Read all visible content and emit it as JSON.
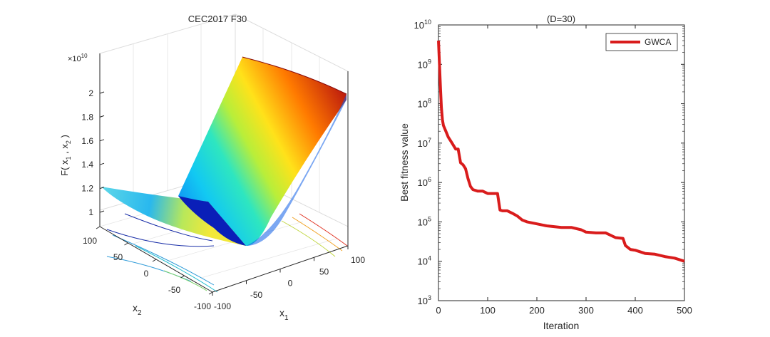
{
  "chart_data": [
    {
      "type": "surface3d",
      "title": "CEC2017 F30",
      "zlabel_main": "F( x",
      "zlabel_sub1": "1",
      "zlabel_mid": " , x",
      "zlabel_sub2": "2",
      "zlabel_end": " )",
      "xlabel_main": "x",
      "xlabel_sub": "1",
      "ylabel_main": "x",
      "ylabel_sub": "2",
      "zscale_main": "×10",
      "zscale_exp": "10",
      "zlim": [
        0.9,
        2.1
      ],
      "zticks": [
        "1",
        "1.2",
        "1.4",
        "1.6",
        "1.8",
        "2"
      ],
      "x1ticks": [
        "-100",
        "-50",
        "0",
        "50",
        "100"
      ],
      "x2ticks": [
        "-100",
        "-50",
        "0",
        "50",
        "100"
      ],
      "colormap": "jet"
    },
    {
      "type": "line",
      "title": "(D=30)",
      "xlabel": "Iteration",
      "ylabel": "Best fitness value",
      "yscale": "log",
      "xlim": [
        0,
        500
      ],
      "ylim_exp": [
        3,
        10
      ],
      "xticks": [
        "0",
        "100",
        "200",
        "300",
        "400",
        "500"
      ],
      "ytick_base": "10",
      "ytick_exps": [
        "3",
        "4",
        "5",
        "6",
        "7",
        "8",
        "9",
        "10"
      ],
      "legend_position": "top-right",
      "series": [
        {
          "name": "GWCA",
          "color": "#d91c1c",
          "x": [
            0,
            2,
            4,
            6,
            8,
            10,
            15,
            20,
            25,
            30,
            35,
            40,
            45,
            50,
            55,
            60,
            65,
            70,
            80,
            90,
            100,
            110,
            120,
            125,
            130,
            140,
            150,
            160,
            170,
            180,
            200,
            220,
            250,
            270,
            290,
            300,
            320,
            340,
            360,
            375,
            380,
            390,
            400,
            420,
            440,
            460,
            480,
            500
          ],
          "log10y": [
            9.6,
            9.0,
            8.4,
            7.9,
            7.6,
            7.45,
            7.3,
            7.15,
            7.05,
            6.95,
            6.85,
            6.85,
            6.5,
            6.45,
            6.35,
            6.1,
            5.9,
            5.82,
            5.78,
            5.78,
            5.72,
            5.72,
            5.72,
            5.3,
            5.28,
            5.28,
            5.22,
            5.15,
            5.05,
            5.0,
            4.95,
            4.9,
            4.86,
            4.86,
            4.8,
            4.74,
            4.72,
            4.72,
            4.6,
            4.58,
            4.4,
            4.3,
            4.28,
            4.2,
            4.18,
            4.12,
            4.08,
            4.0
          ]
        }
      ]
    }
  ]
}
